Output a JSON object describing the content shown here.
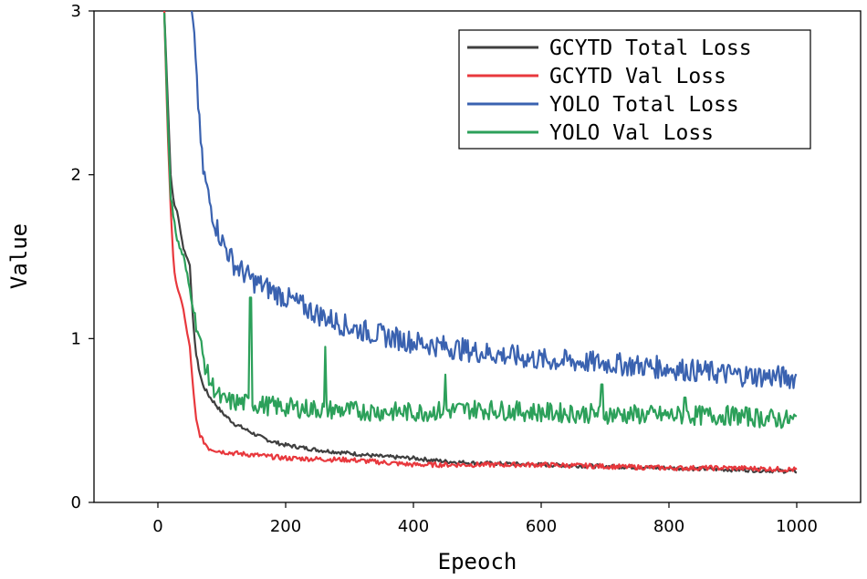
{
  "chart_data": {
    "type": "line",
    "title": "",
    "xlabel": "Epeoch",
    "ylabel": "Value",
    "xlim": [
      -100,
      1100
    ],
    "ylim": [
      0,
      3
    ],
    "xticks": [
      0,
      200,
      400,
      600,
      800,
      1000
    ],
    "xtick_labels": [
      "0",
      "200",
      "400",
      "600",
      "800",
      "1000"
    ],
    "yticks": [
      0,
      1,
      2,
      3
    ],
    "ytick_labels": [
      "0",
      "1",
      "2",
      "3"
    ],
    "legend_position": "top-right",
    "series": [
      {
        "name": "GCYTD Total Loss",
        "color": "#3f3f3f",
        "x": [
          10,
          15,
          20,
          25,
          30,
          40,
          45,
          50,
          55,
          60,
          65,
          70,
          80,
          90,
          100,
          120,
          140,
          160,
          180,
          200,
          250,
          300,
          350,
          400,
          450,
          500,
          600,
          700,
          800,
          900,
          1000
        ],
        "y": [
          3.0,
          2.5,
          2.0,
          1.82,
          1.78,
          1.55,
          1.5,
          1.45,
          1.1,
          0.9,
          0.8,
          0.72,
          0.65,
          0.6,
          0.55,
          0.48,
          0.44,
          0.4,
          0.37,
          0.35,
          0.32,
          0.3,
          0.28,
          0.27,
          0.25,
          0.24,
          0.23,
          0.22,
          0.21,
          0.2,
          0.19
        ],
        "noise": 0.012
      },
      {
        "name": "GCYTD Val Loss",
        "color": "#e8383d",
        "x": [
          10,
          15,
          20,
          25,
          30,
          40,
          45,
          50,
          55,
          60,
          65,
          70,
          80,
          90,
          100,
          120,
          150,
          200,
          300,
          400,
          500,
          600,
          700,
          800,
          900,
          1000
        ],
        "y": [
          3.0,
          2.3,
          1.8,
          1.42,
          1.32,
          1.18,
          1.05,
          0.95,
          0.7,
          0.5,
          0.42,
          0.38,
          0.33,
          0.32,
          0.31,
          0.3,
          0.29,
          0.27,
          0.26,
          0.23,
          0.23,
          0.23,
          0.22,
          0.21,
          0.21,
          0.2
        ],
        "noise": 0.015
      },
      {
        "name": "YOLO Total Loss",
        "color": "#3a62b0",
        "x": [
          53,
          58,
          65,
          70,
          80,
          90,
          100,
          120,
          150,
          200,
          250,
          300,
          350,
          400,
          450,
          500,
          600,
          700,
          800,
          900,
          1000
        ],
        "y": [
          3.0,
          2.8,
          2.3,
          2.05,
          1.85,
          1.7,
          1.6,
          1.45,
          1.35,
          1.25,
          1.15,
          1.07,
          1.02,
          0.98,
          0.95,
          0.92,
          0.87,
          0.85,
          0.82,
          0.78,
          0.76
        ],
        "noise": 0.07
      },
      {
        "name": "YOLO Val Loss",
        "color": "#2ca05a",
        "x": [
          10,
          15,
          20,
          25,
          30,
          40,
          50,
          60,
          70,
          80,
          100,
          150,
          200,
          300,
          400,
          500,
          600,
          700,
          800,
          900,
          1000
        ],
        "y": [
          3.0,
          2.4,
          1.85,
          1.75,
          1.6,
          1.5,
          1.3,
          1.1,
          0.9,
          0.75,
          0.62,
          0.6,
          0.58,
          0.56,
          0.55,
          0.57,
          0.55,
          0.54,
          0.53,
          0.53,
          0.5
        ],
        "noise": 0.06,
        "spikes": [
          [
            145,
            1.25
          ],
          [
            262,
            0.95
          ],
          [
            450,
            0.78
          ],
          [
            695,
            0.72
          ],
          [
            825,
            0.64
          ]
        ]
      }
    ]
  }
}
